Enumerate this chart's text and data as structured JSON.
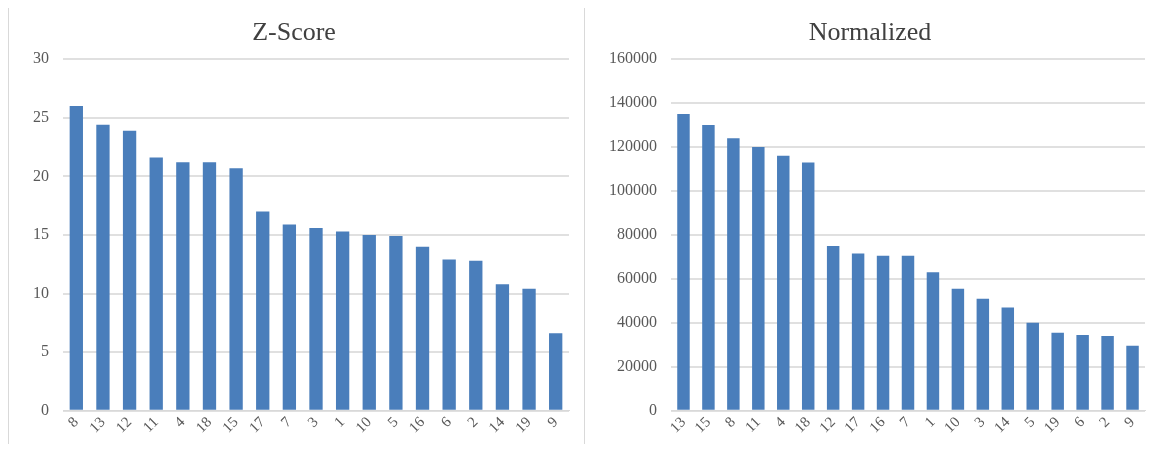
{
  "chart_data": [
    {
      "type": "bar",
      "title": "Z-Score",
      "categories": [
        "8",
        "13",
        "12",
        "11",
        "4",
        "18",
        "15",
        "17",
        "7",
        "3",
        "1",
        "10",
        "5",
        "16",
        "6",
        "2",
        "14",
        "19",
        "9"
      ],
      "values": [
        26,
        24.4,
        23.9,
        21.6,
        21.2,
        21.2,
        20.7,
        17,
        15.9,
        15.6,
        15.3,
        15,
        14.9,
        14,
        12.9,
        12.8,
        10.8,
        10.4,
        6.6
      ],
      "color": "#4a7ebb",
      "ylim": [
        0,
        30
      ],
      "yticks": [
        0,
        5,
        10,
        15,
        20,
        25,
        30
      ],
      "grid": "y"
    },
    {
      "type": "bar",
      "title": "Normalized",
      "categories": [
        "13",
        "15",
        "8",
        "11",
        "4",
        "18",
        "12",
        "17",
        "16",
        "7",
        "1",
        "10",
        "3",
        "14",
        "5",
        "19",
        "6",
        "2",
        "9"
      ],
      "values": [
        135000,
        130000,
        124000,
        120000,
        116000,
        113000,
        75000,
        71500,
        70500,
        70500,
        63000,
        55500,
        51000,
        47000,
        40000,
        35500,
        34500,
        34000,
        29500
      ],
      "color": "#4a7ebb",
      "ylim": [
        0,
        160000
      ],
      "yticks": [
        0,
        20000,
        40000,
        60000,
        80000,
        100000,
        120000,
        140000,
        160000
      ],
      "grid": "y"
    }
  ]
}
